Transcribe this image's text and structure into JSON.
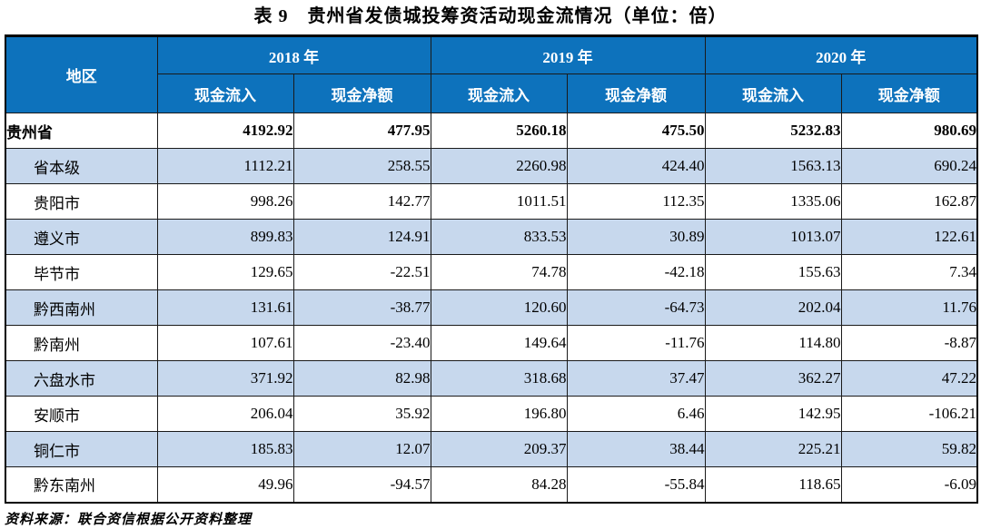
{
  "title": "表 9　贵州省发债城投筹资活动现金流情况（单位：倍）",
  "footnote": "资料来源：联合资信根据公开资料整理",
  "colors": {
    "header_bg": "#0D72BC",
    "header_text": "#FFFFFF",
    "row_alt_bg": "#C7D8ED",
    "border": "#1A1A1A"
  },
  "table": {
    "region_header": "地区",
    "year_groups": [
      {
        "year": "2018 年"
      },
      {
        "year": "2019 年"
      },
      {
        "year": "2020 年"
      }
    ],
    "sub_headers": [
      "现金流入",
      "现金净额",
      "现金流入",
      "现金净额",
      "现金流入",
      "现金净额"
    ],
    "rows": [
      {
        "region": "贵州省",
        "values": [
          "4192.92",
          "477.95",
          "5260.18",
          "475.50",
          "5232.83",
          "980.69"
        ],
        "bold": true,
        "indent": false,
        "shaded": false
      },
      {
        "region": "省本级",
        "values": [
          "1112.21",
          "258.55",
          "2260.98",
          "424.40",
          "1563.13",
          "690.24"
        ],
        "bold": false,
        "indent": true,
        "shaded": true
      },
      {
        "region": "贵阳市",
        "values": [
          "998.26",
          "142.77",
          "1011.51",
          "112.35",
          "1335.06",
          "162.87"
        ],
        "bold": false,
        "indent": true,
        "shaded": false
      },
      {
        "region": "遵义市",
        "values": [
          "899.83",
          "124.91",
          "833.53",
          "30.89",
          "1013.07",
          "122.61"
        ],
        "bold": false,
        "indent": true,
        "shaded": true
      },
      {
        "region": "毕节市",
        "values": [
          "129.65",
          "-22.51",
          "74.78",
          "-42.18",
          "155.63",
          "7.34"
        ],
        "bold": false,
        "indent": true,
        "shaded": false
      },
      {
        "region": "黔西南州",
        "values": [
          "131.61",
          "-38.77",
          "120.60",
          "-64.73",
          "202.04",
          "11.76"
        ],
        "bold": false,
        "indent": true,
        "shaded": true
      },
      {
        "region": "黔南州",
        "values": [
          "107.61",
          "-23.40",
          "149.64",
          "-11.76",
          "114.80",
          "-8.87"
        ],
        "bold": false,
        "indent": true,
        "shaded": false
      },
      {
        "region": "六盘水市",
        "values": [
          "371.92",
          "82.98",
          "318.68",
          "37.47",
          "362.27",
          "47.22"
        ],
        "bold": false,
        "indent": true,
        "shaded": true
      },
      {
        "region": "安顺市",
        "values": [
          "206.04",
          "35.92",
          "196.80",
          "6.46",
          "142.95",
          "-106.21"
        ],
        "bold": false,
        "indent": true,
        "shaded": false
      },
      {
        "region": "铜仁市",
        "values": [
          "185.83",
          "12.07",
          "209.37",
          "38.44",
          "225.21",
          "59.82"
        ],
        "bold": false,
        "indent": true,
        "shaded": true
      },
      {
        "region": "黔东南州",
        "values": [
          "49.96",
          "-94.57",
          "84.28",
          "-55.84",
          "118.65",
          "-6.09"
        ],
        "bold": false,
        "indent": true,
        "shaded": false
      }
    ]
  }
}
